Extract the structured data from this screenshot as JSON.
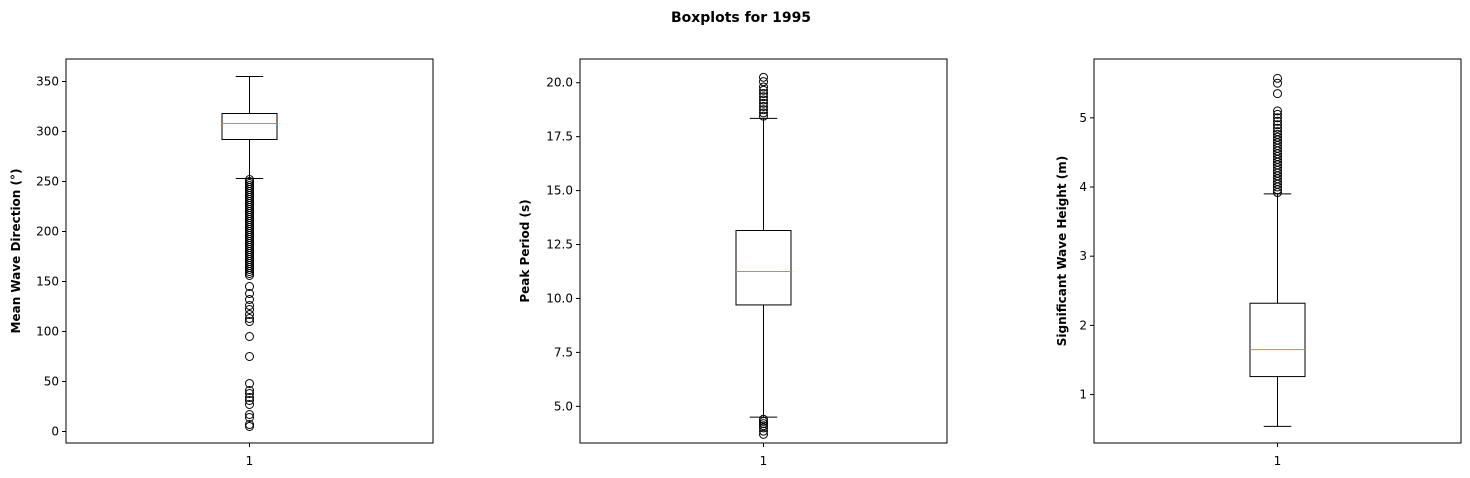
{
  "figure": {
    "suptitle": "Boxplots for 1995"
  },
  "chart_data": [
    {
      "type": "box",
      "title": "",
      "xlabel": "",
      "ylabel": "Mean Wave Direction (°)",
      "categories": [
        "1"
      ],
      "ylim": [
        -11.5,
        372.5
      ],
      "yticks": [
        0,
        50,
        100,
        150,
        200,
        250,
        300,
        350
      ],
      "ytick_labels": [
        "0",
        "50",
        "100",
        "150",
        "200",
        "250",
        "300",
        "350"
      ],
      "grid": false,
      "box": {
        "whisker_low": 253,
        "q1": 292,
        "median": 308,
        "q3": 318,
        "whisker_high": 355
      },
      "outliers": [
        252,
        250,
        248,
        246,
        244,
        242,
        240,
        238,
        236,
        234,
        232,
        230,
        228,
        226,
        224,
        222,
        220,
        218,
        216,
        214,
        212,
        210,
        208,
        206,
        204,
        202,
        200,
        198,
        196,
        194,
        192,
        190,
        188,
        186,
        184,
        182,
        180,
        178,
        176,
        174,
        172,
        170,
        168,
        166,
        164,
        162,
        160,
        158,
        156,
        145,
        138,
        132,
        126,
        122,
        117,
        113,
        110,
        95,
        75,
        48,
        41,
        38,
        34,
        31,
        27,
        17,
        14,
        7,
        5
      ]
    },
    {
      "type": "box",
      "title": "",
      "xlabel": "",
      "ylabel": "Peak Period (s)",
      "categories": [
        "1"
      ],
      "ylim": [
        3.3,
        21.1
      ],
      "yticks": [
        5.0,
        7.5,
        10.0,
        12.5,
        15.0,
        17.5,
        20.0
      ],
      "ytick_labels": [
        "5.0",
        "7.5",
        "10.0",
        "12.5",
        "15.0",
        "17.5",
        "20.0"
      ],
      "grid": false,
      "box": {
        "whisker_low": 4.5,
        "q1": 9.7,
        "median": 11.25,
        "q3": 13.15,
        "whisker_high": 18.35
      },
      "outliers": [
        18.45,
        18.6,
        18.75,
        18.9,
        19.05,
        19.2,
        19.35,
        19.5,
        19.65,
        19.8,
        20.05,
        20.25,
        4.4,
        4.3,
        4.2,
        4.1,
        4.0,
        3.85,
        3.7
      ]
    },
    {
      "type": "box",
      "title": "",
      "xlabel": "",
      "ylabel": "Significant Wave Height (m)",
      "categories": [
        "1"
      ],
      "ylim": [
        0.3,
        5.85
      ],
      "yticks": [
        1,
        2,
        3,
        4,
        5
      ],
      "ytick_labels": [
        "1",
        "2",
        "3",
        "4",
        "5"
      ],
      "grid": false,
      "box": {
        "whisker_low": 0.54,
        "q1": 1.26,
        "median": 1.65,
        "q3": 2.32,
        "whisker_high": 3.9
      },
      "outliers": [
        3.92,
        3.96,
        4.0,
        4.04,
        4.08,
        4.12,
        4.16,
        4.2,
        4.24,
        4.28,
        4.32,
        4.36,
        4.4,
        4.44,
        4.48,
        4.52,
        4.56,
        4.6,
        4.64,
        4.68,
        4.72,
        4.76,
        4.8,
        4.85,
        4.9,
        4.95,
        5.0,
        5.05,
        5.1,
        5.35,
        5.5,
        5.57
      ]
    }
  ]
}
